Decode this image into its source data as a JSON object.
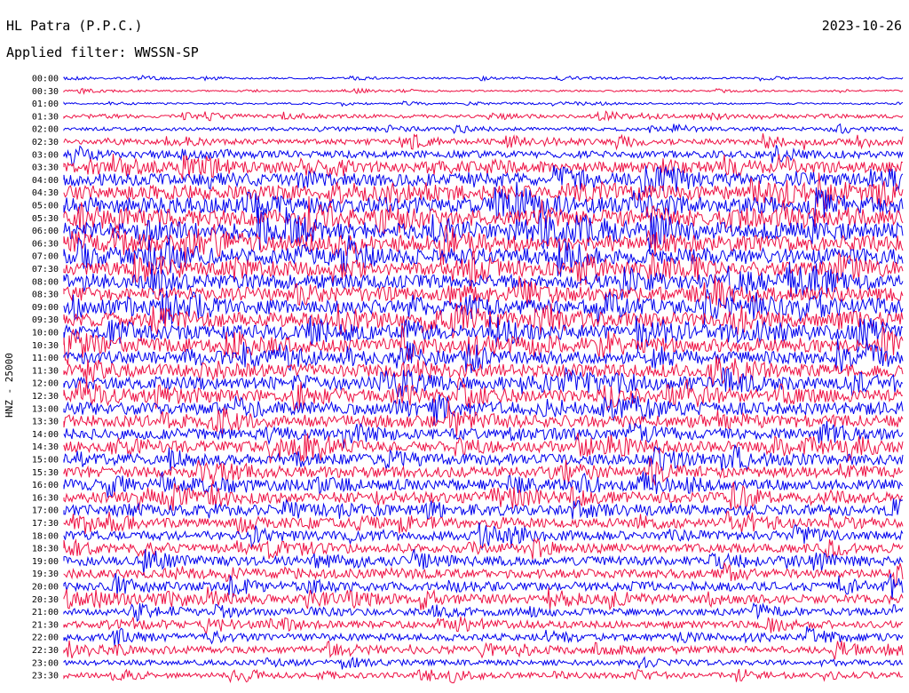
{
  "header": {
    "station": "HL Patra (P.P.C.)",
    "filter": "Applied filter: WWSSN-SP",
    "date": "2023-10-26",
    "channel_label": "HNZ - 25000"
  },
  "colors": {
    "odd_trace": "#0000ee",
    "even_trace": "#ee1144"
  },
  "chart_data": {
    "type": "line",
    "title": "HL Patra (P.P.C.)",
    "subtitle": "Applied filter: WWSSN-SP",
    "ylabel": "HNZ - 25000",
    "xlabel": "",
    "row_labels": [
      "00:00",
      "00:30",
      "01:00",
      "01:30",
      "02:00",
      "02:30",
      "03:00",
      "03:30",
      "04:00",
      "04:30",
      "05:00",
      "05:30",
      "06:00",
      "06:30",
      "07:00",
      "07:30",
      "08:00",
      "08:30",
      "09:00",
      "09:30",
      "10:00",
      "10:30",
      "11:00",
      "11:30",
      "12:00",
      "12:30",
      "13:00",
      "13:30",
      "14:00",
      "14:30",
      "15:00",
      "15:30",
      "16:00",
      "16:30",
      "17:00",
      "17:30",
      "18:00",
      "18:30",
      "19:00",
      "19:30",
      "20:00",
      "20:30",
      "21:00",
      "21:30",
      "22:00",
      "22:30",
      "23:00",
      "23:30"
    ],
    "row_amplitudes": [
      1,
      1,
      1,
      2,
      2,
      3,
      4,
      6,
      7,
      8,
      9,
      9,
      9,
      9,
      9,
      8,
      8,
      8,
      8,
      8,
      8,
      8,
      7,
      7,
      7,
      7,
      7,
      7,
      6,
      6,
      6,
      6,
      6,
      6,
      6,
      5,
      5,
      5,
      5,
      5,
      5,
      5,
      4,
      4,
      4,
      4,
      3,
      3
    ],
    "grid": false,
    "legend": "none"
  }
}
